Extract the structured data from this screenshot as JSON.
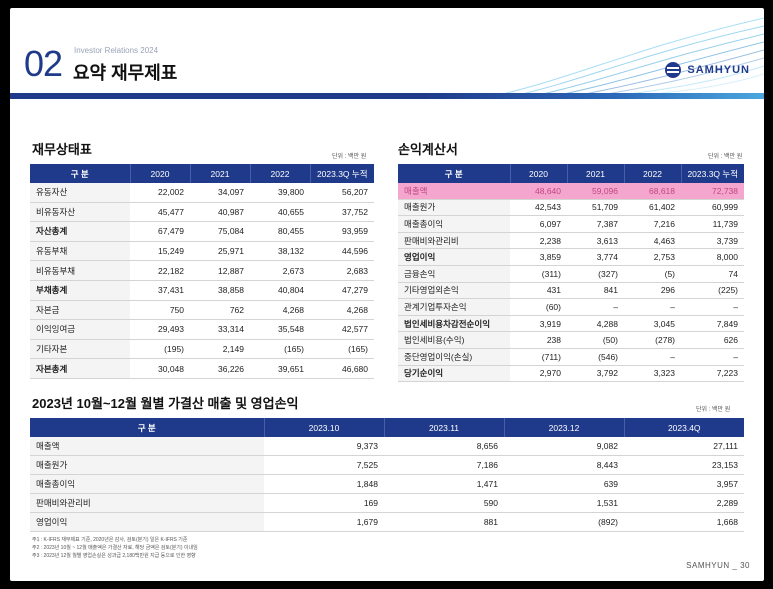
{
  "header": {
    "section_number": "02",
    "subtitle": "Investor Relations 2024",
    "title": "요약 재무제표",
    "logo_text": "SAMHYUN"
  },
  "balance_sheet": {
    "title": "재무상태표",
    "unit": "단위 : 백만 원",
    "columns": [
      "구 분",
      "2020",
      "2021",
      "2022",
      "2023.3Q 누적"
    ],
    "rows": [
      {
        "label": "유동자산",
        "values": [
          "22,002",
          "34,097",
          "39,800",
          "56,207"
        ],
        "bold": false
      },
      {
        "label": "비유동자산",
        "values": [
          "45,477",
          "40,987",
          "40,655",
          "37,752"
        ],
        "bold": false
      },
      {
        "label": "자산총계",
        "values": [
          "67,479",
          "75,084",
          "80,455",
          "93,959"
        ],
        "bold": true
      },
      {
        "label": "유동부채",
        "values": [
          "15,249",
          "25,971",
          "38,132",
          "44,596"
        ],
        "bold": false
      },
      {
        "label": "비유동부채",
        "values": [
          "22,182",
          "12,887",
          "2,673",
          "2,683"
        ],
        "bold": false
      },
      {
        "label": "부채총계",
        "values": [
          "37,431",
          "38,858",
          "40,804",
          "47,279"
        ],
        "bold": true
      },
      {
        "label": "자본금",
        "values": [
          "750",
          "762",
          "4,268",
          "4,268"
        ],
        "bold": false
      },
      {
        "label": "이익잉여금",
        "values": [
          "29,493",
          "33,314",
          "35,548",
          "42,577"
        ],
        "bold": false
      },
      {
        "label": "기타자본",
        "values": [
          "(195)",
          "2,149",
          "(165)",
          "(165)"
        ],
        "bold": false
      },
      {
        "label": "자본총계",
        "values": [
          "30,048",
          "36,226",
          "39,651",
          "46,680"
        ],
        "bold": true
      }
    ]
  },
  "income_statement": {
    "title": "손익계산서",
    "unit": "단위 : 백만 원",
    "columns": [
      "구 분",
      "2020",
      "2021",
      "2022",
      "2023.3Q 누적"
    ],
    "rows": [
      {
        "label": "매출액",
        "values": [
          "48,640",
          "59,096",
          "68,618",
          "72,738"
        ],
        "highlight": true
      },
      {
        "label": "매출원가",
        "values": [
          "42,543",
          "51,709",
          "61,402",
          "60,999"
        ]
      },
      {
        "label": "매출총이익",
        "values": [
          "6,097",
          "7,387",
          "7,216",
          "11,739"
        ]
      },
      {
        "label": "판매비와관리비",
        "values": [
          "2,238",
          "3,613",
          "4,463",
          "3,739"
        ]
      },
      {
        "label": "영업이익",
        "values": [
          "3,859",
          "3,774",
          "2,753",
          "8,000"
        ],
        "bold": true
      },
      {
        "label": "금융손익",
        "values": [
          "(311)",
          "(327)",
          "(5)",
          "74"
        ]
      },
      {
        "label": "기타영업외손익",
        "values": [
          "431",
          "841",
          "296",
          "(225)"
        ]
      },
      {
        "label": "관계기업투자손익",
        "values": [
          "(60)",
          "–",
          "–",
          "–"
        ]
      },
      {
        "label": "법인세비용차감전순이익",
        "values": [
          "3,919",
          "4,288",
          "3,045",
          "7,849"
        ],
        "bold": true
      },
      {
        "label": "법인세비용(수익)",
        "values": [
          "238",
          "(50)",
          "(278)",
          "626"
        ]
      },
      {
        "label": "중단영업이익(손실)",
        "values": [
          "(711)",
          "(546)",
          "–",
          "–"
        ]
      },
      {
        "label": "당기순이익",
        "values": [
          "2,970",
          "3,792",
          "3,323",
          "7,223"
        ],
        "bold": true
      }
    ]
  },
  "monthly": {
    "title": "2023년 10월~12월 월별 가결산 매출 및 영업손익",
    "unit": "단위 : 백만 원",
    "columns": [
      "구 분",
      "2023.10",
      "2023.11",
      "2023.12",
      "2023.4Q"
    ],
    "rows": [
      {
        "label": "매출액",
        "values": [
          "9,373",
          "8,656",
          "9,082",
          "27,111"
        ]
      },
      {
        "label": "매출원가",
        "values": [
          "7,525",
          "7,186",
          "8,443",
          "23,153"
        ]
      },
      {
        "label": "매출총이익",
        "values": [
          "1,848",
          "1,471",
          "639",
          "3,957"
        ]
      },
      {
        "label": "판매비와관리비",
        "values": [
          "169",
          "590",
          "1,531",
          "2,289"
        ]
      },
      {
        "label": "영업이익",
        "values": [
          "1,679",
          "881",
          "(892)",
          "1,668"
        ]
      }
    ]
  },
  "notes": [
    "주1 : K-IFRS 재무제표 기준, 2020년은 감사, 검토(분기) 일은 K-IFRS 기준",
    "주2 : 2023년 10월 ~ 12월 매출액은 가결산 자료, 해당 금액은 검토(분기) 이내임",
    "주3 : 2023년 12월 월별 영업손실은 성과급 2,180백만원 지급 등으로 인한 영향"
  ],
  "footer": {
    "brand": "SAMHYUN _",
    "page": "30"
  },
  "colors": {
    "navy": "#1f3a8a",
    "highlight": "#f4a6cf",
    "highlight_text": "#c0477f"
  }
}
